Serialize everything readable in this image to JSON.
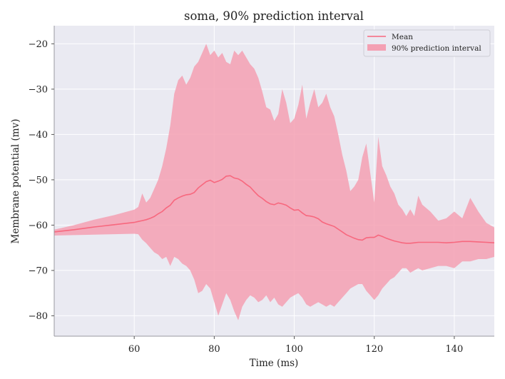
{
  "chart_data": {
    "type": "area",
    "title": "soma, 90% prediction interval",
    "xlabel": "Time (ms)",
    "ylabel": "Membrane potential (mv)",
    "xlim": [
      40,
      150
    ],
    "ylim": [
      -84.5,
      -16
    ],
    "x_ticks": [
      60,
      80,
      100,
      120,
      140
    ],
    "y_ticks": [
      -80,
      -70,
      -60,
      -50,
      -40,
      -30,
      -20
    ],
    "x_tick_labels": [
      "60",
      "80",
      "100",
      "120",
      "140"
    ],
    "y_tick_labels": [
      "−80",
      "−70",
      "−60",
      "−50",
      "−40",
      "−30",
      "−20"
    ],
    "grid": true,
    "legend_position": "top-right",
    "colors": {
      "line": "#f7687e",
      "band": "#f4a0b3",
      "background": "#eaeaf2",
      "grid": "#ffffff"
    },
    "series": [
      {
        "name": "Mean",
        "kind": "line",
        "x": [
          40,
          45,
          50,
          55,
          60,
          61,
          62,
          63,
          64,
          65,
          66,
          67,
          68,
          69,
          70,
          71,
          72,
          73,
          74,
          75,
          76,
          77,
          78,
          79,
          80,
          81,
          82,
          83,
          84,
          85,
          86,
          87,
          88,
          89,
          90,
          91,
          92,
          93,
          94,
          95,
          96,
          97,
          98,
          99,
          100,
          101,
          102,
          103,
          104,
          105,
          106,
          107,
          108,
          109,
          110,
          111,
          112,
          113,
          114,
          115,
          116,
          117,
          118,
          119,
          120,
          121,
          122,
          123,
          124,
          125,
          126,
          127,
          128,
          129,
          130,
          131,
          132,
          134,
          136,
          138,
          140,
          142,
          144,
          146,
          148,
          150
        ],
        "y": [
          -61.5,
          -61,
          -60.4,
          -59.9,
          -59.4,
          -59.2,
          -59,
          -58.8,
          -58.5,
          -58.1,
          -57.5,
          -57,
          -56.2,
          -55.6,
          -54.5,
          -54,
          -53.6,
          -53.3,
          -53.2,
          -52.8,
          -51.8,
          -51.1,
          -50.4,
          -50.1,
          -50.6,
          -50.3,
          -49.9,
          -49.2,
          -49.1,
          -49.6,
          -49.8,
          -50.3,
          -51,
          -51.6,
          -52.6,
          -53.5,
          -54.1,
          -54.8,
          -55.3,
          -55.5,
          -55.1,
          -55.3,
          -55.6,
          -56.2,
          -56.7,
          -56.6,
          -57.3,
          -57.9,
          -58,
          -58.2,
          -58.6,
          -59.3,
          -59.7,
          -60,
          -60.3,
          -60.9,
          -61.5,
          -62.1,
          -62.5,
          -62.9,
          -63.2,
          -63.3,
          -62.8,
          -62.7,
          -62.7,
          -62.2,
          -62.5,
          -62.9,
          -63.2,
          -63.5,
          -63.7,
          -63.9,
          -64,
          -64,
          -63.9,
          -63.8,
          -63.8,
          -63.8,
          -63.8,
          -63.9,
          -63.8,
          -63.6,
          -63.6,
          -63.7,
          -63.8,
          -63.9
        ]
      },
      {
        "name": "90% prediction interval",
        "kind": "band",
        "x": [
          40,
          45,
          50,
          55,
          60,
          61,
          62,
          63,
          64,
          65,
          66,
          67,
          68,
          69,
          70,
          71,
          72,
          73,
          74,
          75,
          76,
          77,
          78,
          79,
          80,
          81,
          82,
          83,
          84,
          85,
          86,
          87,
          88,
          89,
          90,
          91,
          92,
          93,
          94,
          95,
          96,
          97,
          98,
          99,
          100,
          101,
          102,
          103,
          104,
          105,
          106,
          107,
          108,
          109,
          110,
          111,
          112,
          113,
          114,
          115,
          116,
          117,
          118,
          119,
          120,
          121,
          122,
          123,
          124,
          125,
          126,
          127,
          128,
          129,
          130,
          131,
          132,
          134,
          136,
          138,
          140,
          142,
          144,
          146,
          148,
          150
        ],
        "upper": [
          -61,
          -60,
          -58.8,
          -57.8,
          -56.6,
          -56,
          -53,
          -55,
          -54,
          -52,
          -50,
          -47,
          -43,
          -38,
          -31,
          -28,
          -27,
          -29,
          -27.5,
          -25,
          -24,
          -22,
          -20,
          -22.5,
          -21.5,
          -23,
          -22,
          -24,
          -24.5,
          -21.5,
          -22.5,
          -21.5,
          -23,
          -24.5,
          -25.5,
          -27.5,
          -30.5,
          -34,
          -34.5,
          -37,
          -35.5,
          -30,
          -33,
          -37.5,
          -36.5,
          -33.5,
          -29,
          -36.5,
          -33,
          -30,
          -34,
          -33,
          -31,
          -34,
          -36,
          -40,
          -44.5,
          -48,
          -52.5,
          -51.5,
          -50,
          -45,
          -42,
          -48.5,
          -55,
          -40.5,
          -47,
          -49,
          -51.5,
          -53,
          -55.5,
          -56.5,
          -58,
          -56.5,
          -58,
          -53.5,
          -55.5,
          -57,
          -59,
          -58.5,
          -57,
          -58.5,
          -54,
          -57,
          -59.5,
          -60.5
        ],
        "lower": [
          -62.3,
          -62.2,
          -62.1,
          -62,
          -61.9,
          -62,
          -63.2,
          -64,
          -65,
          -66,
          -66.5,
          -67.5,
          -67,
          -69,
          -67,
          -67.5,
          -68.5,
          -69,
          -70,
          -72,
          -75,
          -74.5,
          -73,
          -74,
          -77,
          -80,
          -77.5,
          -75,
          -76.5,
          -79,
          -81,
          -78,
          -76.5,
          -75.5,
          -76,
          -77,
          -76.5,
          -75.5,
          -77,
          -76,
          -77.5,
          -78,
          -77,
          -76,
          -75.5,
          -75,
          -76,
          -77.5,
          -78,
          -77.5,
          -77,
          -77.5,
          -78,
          -77.5,
          -78,
          -77,
          -76,
          -75,
          -74,
          -73.5,
          -73,
          -73,
          -74.5,
          -75.5,
          -76.5,
          -75.5,
          -74,
          -73,
          -72,
          -71.5,
          -70.5,
          -69.5,
          -69.5,
          -70.5,
          -70,
          -69.5,
          -70,
          -69.5,
          -69,
          -69,
          -69.5,
          -68,
          -68,
          -67.5,
          -67.5,
          -67
        ]
      }
    ]
  }
}
